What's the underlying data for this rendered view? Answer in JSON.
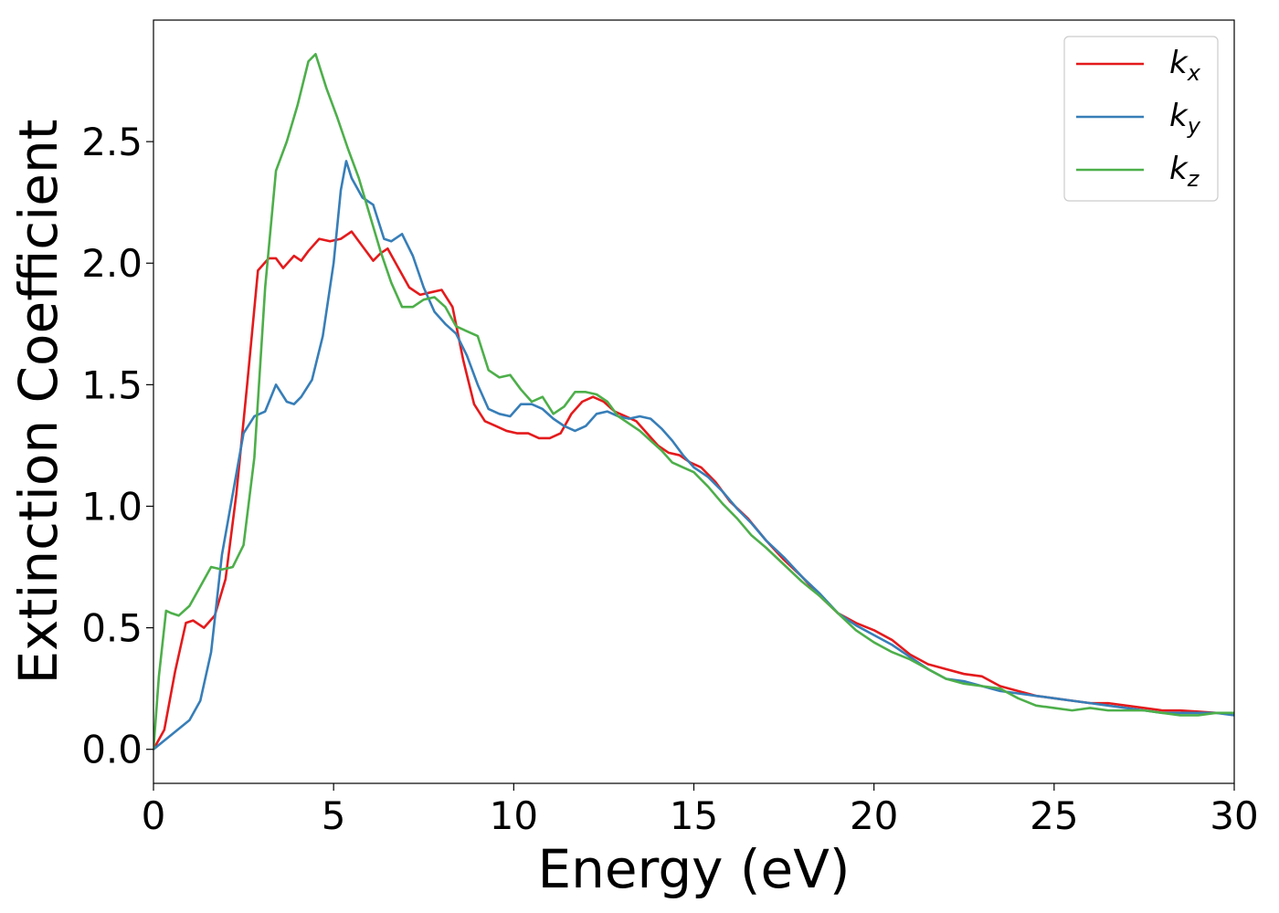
{
  "chart_data": {
    "type": "line",
    "xlabel": "Energy (eV)",
    "ylabel": "Extinction Coefficient",
    "xlim": [
      0,
      30
    ],
    "ylim": [
      -0.14,
      3.0
    ],
    "xticks": [
      0,
      5,
      10,
      15,
      20,
      25,
      30
    ],
    "xtick_labels": [
      "0",
      "5",
      "10",
      "15",
      "20",
      "25",
      "30"
    ],
    "yticks": [
      0.0,
      0.5,
      1.0,
      1.5,
      2.0,
      2.5
    ],
    "ytick_labels": [
      "0.0",
      "0.5",
      "1.0",
      "1.5",
      "2.0",
      "2.5"
    ],
    "grid": false,
    "legend": {
      "position": "top-right",
      "entries": [
        {
          "base": "k",
          "sub": "x"
        },
        {
          "base": "k",
          "sub": "y"
        },
        {
          "base": "k",
          "sub": "z"
        }
      ]
    },
    "series": [
      {
        "name": "kx",
        "color": "#e41a1c",
        "points": [
          [
            0,
            0
          ],
          [
            0.3,
            0.08
          ],
          [
            0.6,
            0.32
          ],
          [
            0.9,
            0.52
          ],
          [
            1.1,
            0.53
          ],
          [
            1.4,
            0.5
          ],
          [
            1.7,
            0.55
          ],
          [
            2.0,
            0.7
          ],
          [
            2.3,
            1.05
          ],
          [
            2.6,
            1.5
          ],
          [
            2.9,
            1.97
          ],
          [
            3.2,
            2.02
          ],
          [
            3.4,
            2.02
          ],
          [
            3.6,
            1.98
          ],
          [
            3.9,
            2.03
          ],
          [
            4.1,
            2.01
          ],
          [
            4.3,
            2.05
          ],
          [
            4.6,
            2.1
          ],
          [
            4.9,
            2.09
          ],
          [
            5.2,
            2.1
          ],
          [
            5.5,
            2.13
          ],
          [
            5.8,
            2.07
          ],
          [
            6.1,
            2.01
          ],
          [
            6.3,
            2.04
          ],
          [
            6.5,
            2.06
          ],
          [
            6.8,
            1.98
          ],
          [
            7.1,
            1.9
          ],
          [
            7.4,
            1.87
          ],
          [
            7.7,
            1.88
          ],
          [
            8.0,
            1.89
          ],
          [
            8.3,
            1.82
          ],
          [
            8.6,
            1.6
          ],
          [
            8.9,
            1.42
          ],
          [
            9.2,
            1.35
          ],
          [
            9.5,
            1.33
          ],
          [
            9.8,
            1.31
          ],
          [
            10.1,
            1.3
          ],
          [
            10.4,
            1.3
          ],
          [
            10.7,
            1.28
          ],
          [
            11.0,
            1.28
          ],
          [
            11.3,
            1.3
          ],
          [
            11.6,
            1.38
          ],
          [
            11.9,
            1.43
          ],
          [
            12.2,
            1.45
          ],
          [
            12.5,
            1.43
          ],
          [
            12.8,
            1.39
          ],
          [
            13.1,
            1.37
          ],
          [
            13.4,
            1.35
          ],
          [
            13.7,
            1.3
          ],
          [
            14.0,
            1.25
          ],
          [
            14.3,
            1.22
          ],
          [
            14.6,
            1.21
          ],
          [
            14.9,
            1.18
          ],
          [
            15.2,
            1.16
          ],
          [
            15.6,
            1.1
          ],
          [
            16.0,
            1.02
          ],
          [
            16.5,
            0.95
          ],
          [
            17.0,
            0.86
          ],
          [
            17.5,
            0.78
          ],
          [
            18.0,
            0.71
          ],
          [
            18.5,
            0.63
          ],
          [
            19.0,
            0.56
          ],
          [
            19.5,
            0.52
          ],
          [
            20.0,
            0.49
          ],
          [
            20.5,
            0.45
          ],
          [
            21.0,
            0.39
          ],
          [
            21.5,
            0.35
          ],
          [
            22.0,
            0.33
          ],
          [
            22.5,
            0.31
          ],
          [
            23.0,
            0.3
          ],
          [
            23.5,
            0.26
          ],
          [
            24.0,
            0.24
          ],
          [
            24.5,
            0.22
          ],
          [
            25.0,
            0.21
          ],
          [
            25.5,
            0.2
          ],
          [
            26.0,
            0.19
          ],
          [
            26.5,
            0.19
          ],
          [
            27.0,
            0.18
          ],
          [
            27.5,
            0.17
          ],
          [
            28.0,
            0.16
          ],
          [
            28.5,
            0.16
          ],
          [
            29.0,
            0.155
          ],
          [
            29.5,
            0.15
          ],
          [
            30.0,
            0.15
          ]
        ]
      },
      {
        "name": "ky",
        "color": "#377eb8",
        "points": [
          [
            0,
            0
          ],
          [
            0.5,
            0.06
          ],
          [
            1.0,
            0.12
          ],
          [
            1.3,
            0.2
          ],
          [
            1.6,
            0.4
          ],
          [
            1.9,
            0.8
          ],
          [
            2.2,
            1.05
          ],
          [
            2.5,
            1.3
          ],
          [
            2.8,
            1.37
          ],
          [
            3.1,
            1.39
          ],
          [
            3.4,
            1.5
          ],
          [
            3.7,
            1.43
          ],
          [
            3.9,
            1.42
          ],
          [
            4.1,
            1.45
          ],
          [
            4.4,
            1.52
          ],
          [
            4.7,
            1.7
          ],
          [
            5.0,
            2.0
          ],
          [
            5.2,
            2.3
          ],
          [
            5.35,
            2.42
          ],
          [
            5.5,
            2.35
          ],
          [
            5.8,
            2.27
          ],
          [
            6.1,
            2.24
          ],
          [
            6.4,
            2.1
          ],
          [
            6.6,
            2.09
          ],
          [
            6.9,
            2.12
          ],
          [
            7.2,
            2.03
          ],
          [
            7.5,
            1.9
          ],
          [
            7.8,
            1.8
          ],
          [
            8.1,
            1.75
          ],
          [
            8.4,
            1.71
          ],
          [
            8.7,
            1.62
          ],
          [
            9.0,
            1.5
          ],
          [
            9.3,
            1.4
          ],
          [
            9.6,
            1.38
          ],
          [
            9.9,
            1.37
          ],
          [
            10.2,
            1.42
          ],
          [
            10.5,
            1.42
          ],
          [
            10.8,
            1.4
          ],
          [
            11.1,
            1.36
          ],
          [
            11.4,
            1.33
          ],
          [
            11.7,
            1.31
          ],
          [
            12.0,
            1.33
          ],
          [
            12.3,
            1.38
          ],
          [
            12.6,
            1.39
          ],
          [
            12.9,
            1.37
          ],
          [
            13.2,
            1.36
          ],
          [
            13.5,
            1.37
          ],
          [
            13.8,
            1.36
          ],
          [
            14.1,
            1.32
          ],
          [
            14.4,
            1.27
          ],
          [
            14.7,
            1.21
          ],
          [
            15.0,
            1.16
          ],
          [
            15.4,
            1.12
          ],
          [
            15.8,
            1.06
          ],
          [
            16.2,
            0.99
          ],
          [
            16.6,
            0.93
          ],
          [
            17.0,
            0.86
          ],
          [
            17.5,
            0.79
          ],
          [
            18.0,
            0.71
          ],
          [
            18.5,
            0.64
          ],
          [
            19.0,
            0.56
          ],
          [
            19.5,
            0.51
          ],
          [
            20.0,
            0.47
          ],
          [
            20.5,
            0.43
          ],
          [
            21.0,
            0.38
          ],
          [
            21.5,
            0.33
          ],
          [
            22.0,
            0.29
          ],
          [
            22.5,
            0.28
          ],
          [
            23.0,
            0.26
          ],
          [
            23.5,
            0.24
          ],
          [
            24.0,
            0.23
          ],
          [
            24.5,
            0.22
          ],
          [
            25.0,
            0.21
          ],
          [
            25.5,
            0.2
          ],
          [
            26.0,
            0.19
          ],
          [
            26.5,
            0.18
          ],
          [
            27.0,
            0.17
          ],
          [
            27.5,
            0.16
          ],
          [
            28.0,
            0.15
          ],
          [
            28.5,
            0.15
          ],
          [
            29.0,
            0.15
          ],
          [
            29.5,
            0.15
          ],
          [
            30.0,
            0.14
          ]
        ]
      },
      {
        "name": "kz",
        "color": "#4daf4a",
        "points": [
          [
            0,
            0
          ],
          [
            0.15,
            0.3
          ],
          [
            0.35,
            0.57
          ],
          [
            0.5,
            0.56
          ],
          [
            0.7,
            0.55
          ],
          [
            1.0,
            0.59
          ],
          [
            1.3,
            0.67
          ],
          [
            1.6,
            0.75
          ],
          [
            1.9,
            0.74
          ],
          [
            2.2,
            0.75
          ],
          [
            2.5,
            0.84
          ],
          [
            2.8,
            1.2
          ],
          [
            3.1,
            1.9
          ],
          [
            3.4,
            2.38
          ],
          [
            3.7,
            2.5
          ],
          [
            4.0,
            2.65
          ],
          [
            4.3,
            2.83
          ],
          [
            4.5,
            2.86
          ],
          [
            4.8,
            2.72
          ],
          [
            5.1,
            2.6
          ],
          [
            5.4,
            2.47
          ],
          [
            5.7,
            2.35
          ],
          [
            6.0,
            2.2
          ],
          [
            6.3,
            2.05
          ],
          [
            6.6,
            1.92
          ],
          [
            6.9,
            1.82
          ],
          [
            7.2,
            1.82
          ],
          [
            7.5,
            1.85
          ],
          [
            7.8,
            1.86
          ],
          [
            8.1,
            1.82
          ],
          [
            8.4,
            1.74
          ],
          [
            8.7,
            1.72
          ],
          [
            9.0,
            1.7
          ],
          [
            9.3,
            1.56
          ],
          [
            9.6,
            1.53
          ],
          [
            9.9,
            1.54
          ],
          [
            10.2,
            1.48
          ],
          [
            10.5,
            1.43
          ],
          [
            10.8,
            1.45
          ],
          [
            11.1,
            1.38
          ],
          [
            11.4,
            1.41
          ],
          [
            11.7,
            1.47
          ],
          [
            12.0,
            1.47
          ],
          [
            12.3,
            1.46
          ],
          [
            12.6,
            1.43
          ],
          [
            12.9,
            1.37
          ],
          [
            13.2,
            1.34
          ],
          [
            13.5,
            1.31
          ],
          [
            13.8,
            1.27
          ],
          [
            14.1,
            1.23
          ],
          [
            14.4,
            1.18
          ],
          [
            14.7,
            1.16
          ],
          [
            15.0,
            1.14
          ],
          [
            15.4,
            1.08
          ],
          [
            15.8,
            1.01
          ],
          [
            16.2,
            0.95
          ],
          [
            16.6,
            0.88
          ],
          [
            17.0,
            0.83
          ],
          [
            17.5,
            0.76
          ],
          [
            18.0,
            0.69
          ],
          [
            18.5,
            0.63
          ],
          [
            19.0,
            0.56
          ],
          [
            19.5,
            0.49
          ],
          [
            20.0,
            0.44
          ],
          [
            20.5,
            0.4
          ],
          [
            21.0,
            0.37
          ],
          [
            21.5,
            0.33
          ],
          [
            22.0,
            0.29
          ],
          [
            22.5,
            0.27
          ],
          [
            23.0,
            0.26
          ],
          [
            23.5,
            0.25
          ],
          [
            24.0,
            0.21
          ],
          [
            24.5,
            0.18
          ],
          [
            25.0,
            0.17
          ],
          [
            25.5,
            0.16
          ],
          [
            26.0,
            0.17
          ],
          [
            26.5,
            0.16
          ],
          [
            27.0,
            0.16
          ],
          [
            27.5,
            0.16
          ],
          [
            28.0,
            0.15
          ],
          [
            28.5,
            0.14
          ],
          [
            29.0,
            0.14
          ],
          [
            29.5,
            0.15
          ],
          [
            30.0,
            0.15
          ]
        ]
      }
    ]
  }
}
